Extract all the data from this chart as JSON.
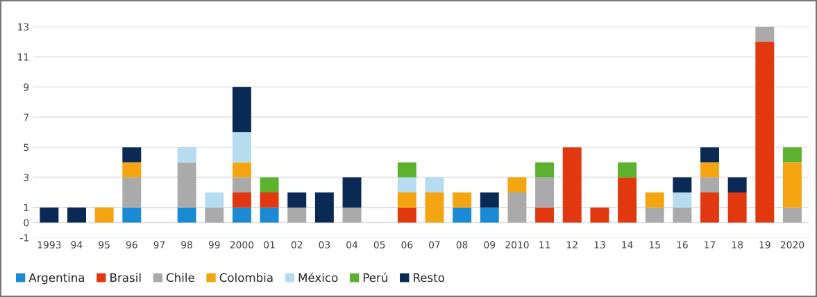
{
  "chart_data": {
    "type": "bar",
    "stacked": true,
    "categories": [
      "1993",
      "94",
      "95",
      "96",
      "97",
      "98",
      "99",
      "2000",
      "01",
      "02",
      "03",
      "04",
      "05",
      "06",
      "07",
      "08",
      "09",
      "2010",
      "11",
      "12",
      "13",
      "14",
      "15",
      "16",
      "17",
      "18",
      "19",
      "2020"
    ],
    "series": [
      {
        "name": "Argentina",
        "color": "#1a8ad4",
        "values": [
          null,
          null,
          null,
          1,
          null,
          1,
          null,
          1,
          1,
          null,
          null,
          null,
          null,
          null,
          null,
          1,
          1,
          null,
          null,
          null,
          null,
          null,
          null,
          null,
          null,
          null,
          null,
          null
        ]
      },
      {
        "name": "Brasil",
        "color": "#e2380f",
        "values": [
          null,
          null,
          null,
          null,
          null,
          null,
          null,
          1,
          1,
          null,
          null,
          null,
          null,
          1,
          null,
          null,
          null,
          null,
          1,
          5,
          1,
          3,
          null,
          null,
          2,
          2,
          12,
          null
        ]
      },
      {
        "name": "Chile",
        "color": "#aaaaaa",
        "values": [
          null,
          null,
          null,
          2,
          null,
          3,
          1,
          1,
          null,
          1,
          null,
          1,
          null,
          null,
          null,
          null,
          null,
          2,
          2,
          null,
          null,
          null,
          1,
          1,
          1,
          null,
          1,
          1
        ]
      },
      {
        "name": "Colombia",
        "color": "#f5a511",
        "values": [
          null,
          null,
          1,
          1,
          null,
          null,
          null,
          1,
          null,
          null,
          null,
          null,
          null,
          1,
          2,
          1,
          null,
          1,
          null,
          null,
          null,
          null,
          1,
          null,
          1,
          null,
          null,
          3
        ]
      },
      {
        "name": "México",
        "color": "#b5dcef",
        "values": [
          null,
          null,
          null,
          null,
          null,
          1,
          1,
          2,
          null,
          null,
          null,
          null,
          null,
          1,
          1,
          null,
          null,
          null,
          null,
          null,
          null,
          null,
          null,
          1,
          null,
          null,
          null,
          null
        ]
      },
      {
        "name": "Perú",
        "color": "#5cb22f",
        "values": [
          null,
          null,
          null,
          null,
          null,
          null,
          null,
          null,
          1,
          null,
          null,
          null,
          null,
          1,
          null,
          null,
          null,
          null,
          1,
          null,
          null,
          1,
          null,
          null,
          null,
          null,
          null,
          1
        ]
      },
      {
        "name": "Resto",
        "color": "#0a2a55",
        "values": [
          1,
          1,
          null,
          1,
          null,
          null,
          null,
          3,
          null,
          1,
          2,
          2,
          null,
          null,
          null,
          null,
          1,
          null,
          null,
          null,
          null,
          null,
          null,
          1,
          1,
          1,
          null,
          null
        ]
      }
    ],
    "ylim": [
      -1,
      13
    ],
    "yticks": [
      -1,
      0,
      1,
      3,
      5,
      7,
      9,
      11,
      13
    ],
    "grid": "y",
    "legend": "bottom left"
  }
}
